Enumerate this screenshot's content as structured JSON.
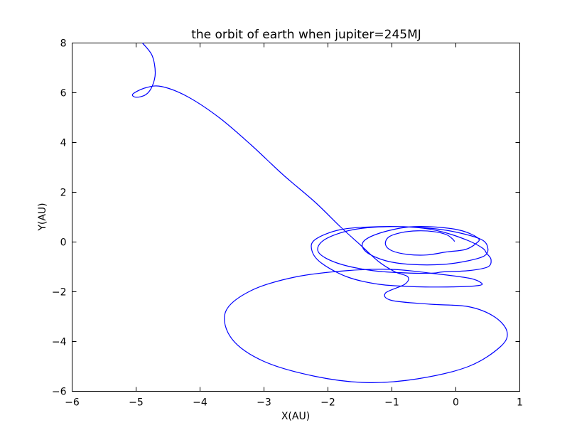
{
  "chart_data": {
    "type": "line",
    "title": "the orbit of earth when jupiter=245MJ",
    "xlabel": "X(AU)",
    "ylabel": "Y(AU)",
    "xlim": [
      -6,
      1
    ],
    "ylim": [
      -6,
      8
    ],
    "xticks": [
      {
        "value": -6,
        "label": "−6"
      },
      {
        "value": -5,
        "label": "−5"
      },
      {
        "value": -4,
        "label": "−4"
      },
      {
        "value": -3,
        "label": "−3"
      },
      {
        "value": -2,
        "label": "−2"
      },
      {
        "value": -1,
        "label": "−1"
      },
      {
        "value": 0,
        "label": "0"
      },
      {
        "value": 1,
        "label": "1"
      }
    ],
    "yticks": [
      {
        "value": -6,
        "label": "−6"
      },
      {
        "value": -4,
        "label": "−4"
      },
      {
        "value": -2,
        "label": "−2"
      },
      {
        "value": 0,
        "label": "0"
      },
      {
        "value": 2,
        "label": "2"
      },
      {
        "value": 4,
        "label": "4"
      },
      {
        "value": 6,
        "label": "6"
      },
      {
        "value": 8,
        "label": "8"
      }
    ],
    "grid": false,
    "color": "#0000ff",
    "series": [
      {
        "points": [
          [
            -0.02,
            0.02
          ],
          [
            -0.05,
            0.12
          ],
          [
            -0.15,
            0.3
          ],
          [
            -0.35,
            0.42
          ],
          [
            -0.6,
            0.45
          ],
          [
            -0.85,
            0.38
          ],
          [
            -1.05,
            0.2
          ],
          [
            -1.1,
            -0.1
          ],
          [
            -1.0,
            -0.35
          ],
          [
            -0.75,
            -0.5
          ],
          [
            -0.45,
            -0.52
          ],
          [
            -0.15,
            -0.4
          ],
          [
            0.15,
            -0.3
          ],
          [
            0.32,
            -0.05
          ],
          [
            0.35,
            0.15
          ],
          [
            0.1,
            0.45
          ],
          [
            -0.3,
            0.6
          ],
          [
            -0.75,
            0.6
          ],
          [
            -1.2,
            0.35
          ],
          [
            -1.45,
            0.0
          ],
          [
            -1.4,
            -0.4
          ],
          [
            -1.1,
            -0.75
          ],
          [
            -0.7,
            -0.9
          ],
          [
            -0.2,
            -0.9
          ],
          [
            0.2,
            -0.75
          ],
          [
            0.45,
            -0.55
          ],
          [
            0.5,
            -0.25
          ],
          [
            0.4,
            0.1
          ],
          [
            0.0,
            0.4
          ],
          [
            -0.4,
            0.55
          ],
          [
            -1.0,
            0.62
          ],
          [
            -1.6,
            0.5
          ],
          [
            -2.05,
            0.1
          ],
          [
            -2.15,
            -0.4
          ],
          [
            -1.85,
            -0.85
          ],
          [
            -1.3,
            -1.15
          ],
          [
            -0.7,
            -1.25
          ],
          [
            -0.35,
            -1.25
          ],
          [
            -0.2,
            -1.2
          ],
          [
            0.2,
            -1.15
          ],
          [
            0.5,
            -1.0
          ],
          [
            0.55,
            -0.7
          ],
          [
            0.48,
            -0.45
          ],
          [
            0.42,
            -0.25
          ],
          [
            0.2,
            0.05
          ],
          [
            -0.2,
            0.4
          ],
          [
            -0.6,
            0.58
          ],
          [
            -1.2,
            0.62
          ],
          [
            -1.8,
            0.5
          ],
          [
            -2.2,
            0.1
          ],
          [
            -2.25,
            -0.35
          ],
          [
            -2.1,
            -0.85
          ],
          [
            -1.7,
            -1.4
          ],
          [
            -1.2,
            -1.7
          ],
          [
            -0.6,
            -1.8
          ],
          [
            0.0,
            -1.8
          ],
          [
            0.35,
            -1.75
          ],
          [
            0.4,
            -1.65
          ],
          [
            0.2,
            -1.45
          ],
          [
            -0.4,
            -1.25
          ],
          [
            -1.0,
            -1.1
          ],
          [
            -1.7,
            -1.15
          ],
          [
            -2.5,
            -1.4
          ],
          [
            -3.2,
            -1.95
          ],
          [
            -3.6,
            -2.8
          ],
          [
            -3.5,
            -3.9
          ],
          [
            -3.0,
            -4.8
          ],
          [
            -2.2,
            -5.4
          ],
          [
            -1.4,
            -5.65
          ],
          [
            -0.6,
            -5.5
          ],
          [
            0.2,
            -5.0
          ],
          [
            0.7,
            -4.2
          ],
          [
            0.8,
            -3.6
          ],
          [
            0.6,
            -3.0
          ],
          [
            0.2,
            -2.6
          ],
          [
            -0.4,
            -2.5
          ],
          [
            -1.0,
            -2.35
          ],
          [
            -1.1,
            -2.05
          ],
          [
            -0.8,
            -1.7
          ],
          [
            -0.75,
            -1.4
          ],
          [
            -0.95,
            -1.2
          ],
          [
            -1.2,
            -0.8
          ],
          [
            -1.5,
            -0.1
          ],
          [
            -1.8,
            0.6
          ],
          [
            -2.2,
            1.6
          ],
          [
            -2.7,
            2.7
          ],
          [
            -3.2,
            3.9
          ],
          [
            -3.7,
            5.0
          ],
          [
            -4.2,
            5.85
          ],
          [
            -4.6,
            6.25
          ],
          [
            -4.85,
            6.2
          ],
          [
            -5.05,
            5.95
          ],
          [
            -5.0,
            5.82
          ],
          [
            -4.85,
            5.92
          ],
          [
            -4.75,
            6.25
          ],
          [
            -4.7,
            6.8
          ],
          [
            -4.75,
            7.5
          ],
          [
            -4.9,
            8.0
          ]
        ]
      }
    ]
  }
}
